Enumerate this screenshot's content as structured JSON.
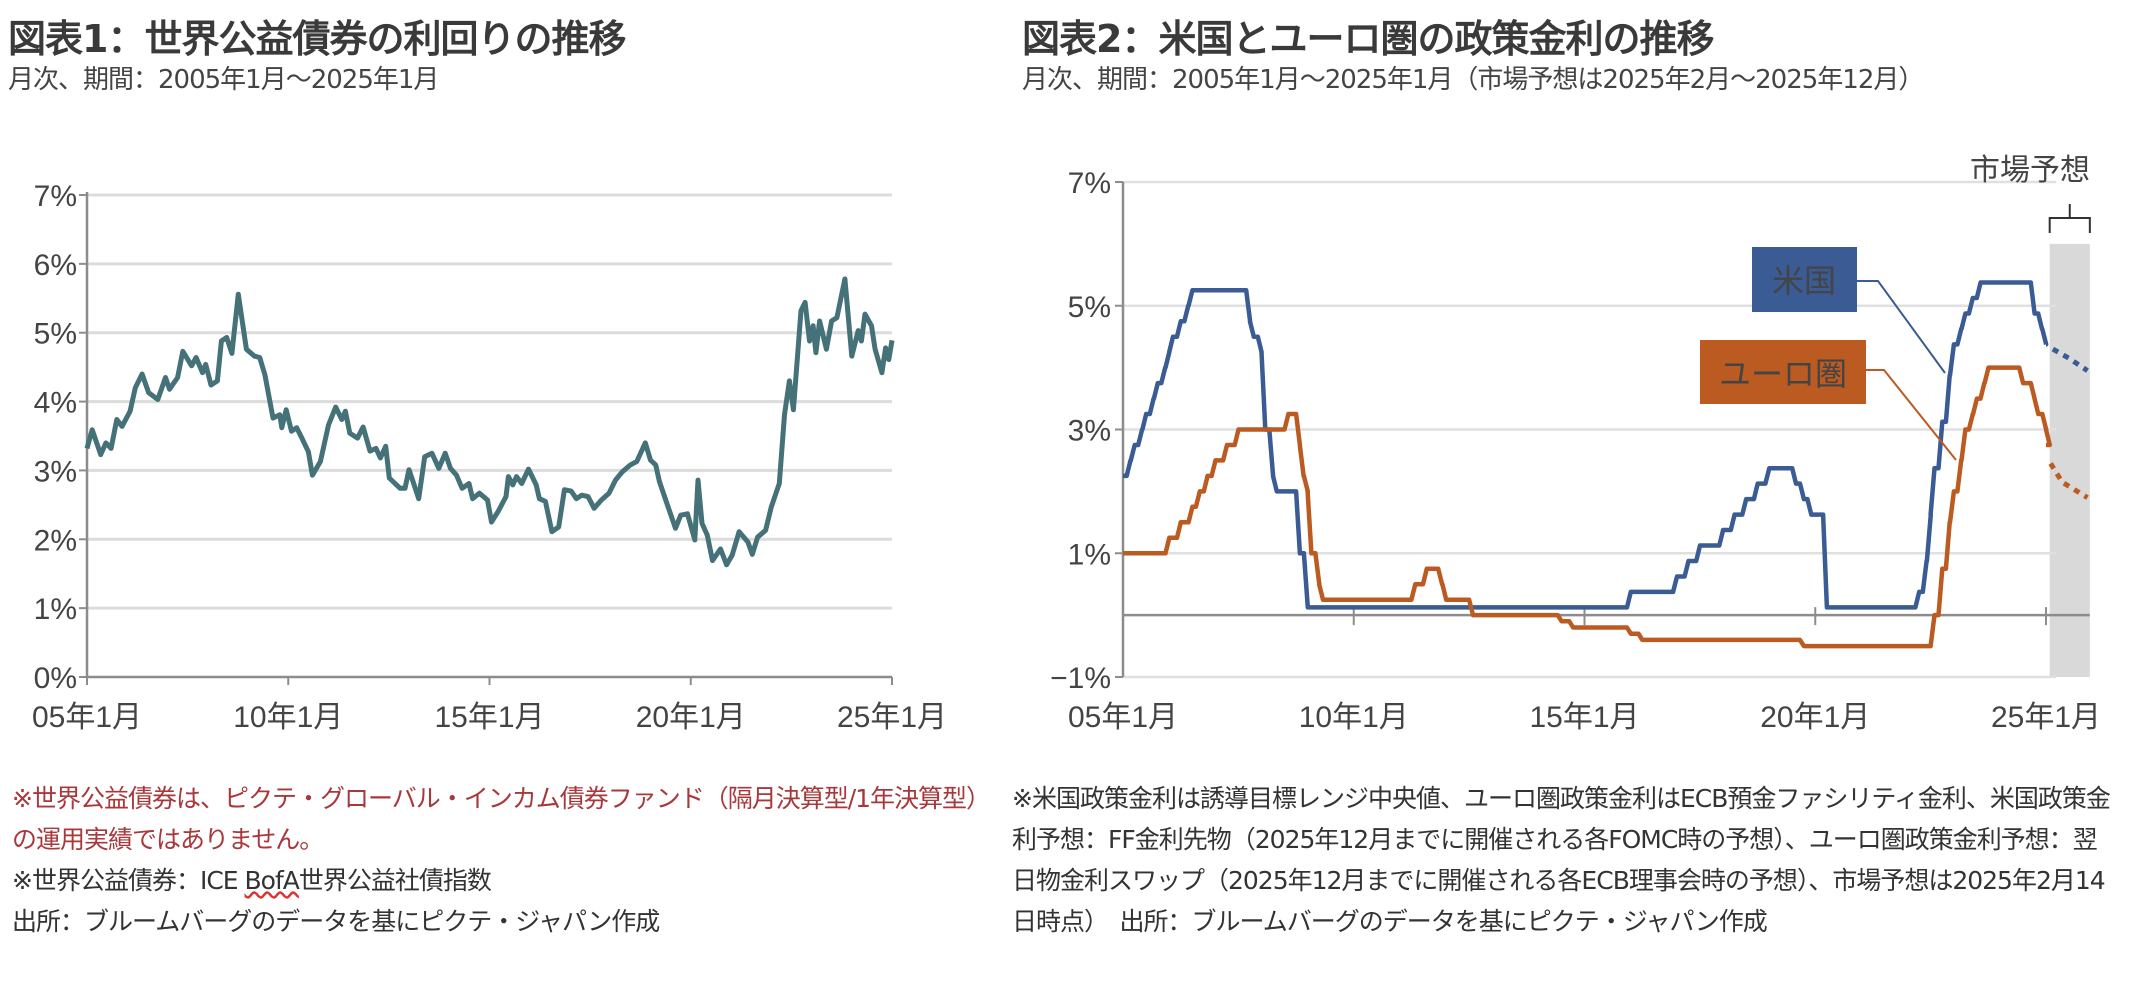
{
  "left": {
    "title": "図表1：世界公益債券の利回りの推移",
    "subtitle": "月次、期間：2005年1月～2025年1月",
    "note_red": "※世界公益債券は、ピクテ・グローバル・インカム債券ファンド（隔月決算型/1年決算型）の運用実績ではありません。",
    "note_index_prefix": "※世界公益債券：ICE ",
    "note_index_bofa": "BofA",
    "note_index_suffix": "世界公益社債指数",
    "source": "出所：ブルームバーグのデータを基にピクテ・ジャパン作成"
  },
  "right": {
    "title": "図表2：米国とユーロ圏の政策金利の推移",
    "subtitle": "月次、期間：2005年1月～2025年1月（市場予想は2025年2月～2025年12月）",
    "notes": "※米国政策金利は誘導目標レンジ中央値、ユーロ圏政策金利はECB預金ファシリティ金利、米国政策金利予想：FF金利先物（2025年12月までに開催される各FOMC時の予想）、ユーロ圏政策金利予想：翌日物金利スワップ（2025年12月までに開催される各ECB理事会時の予想）、市場予想は2025年2月14日時点）　出所：ブルームバーグのデータを基にピクテ・ジャパン作成"
  },
  "chart_data": [
    {
      "type": "line",
      "title": "世界公益債券の利回り",
      "ylim": [
        0,
        7
      ],
      "xlim": [
        2005,
        2025
      ],
      "yticks": [
        {
          "v": 0,
          "label": "0%"
        },
        {
          "v": 1,
          "label": "1%"
        },
        {
          "v": 2,
          "label": "2%"
        },
        {
          "v": 3,
          "label": "3%"
        },
        {
          "v": 4,
          "label": "4%"
        },
        {
          "v": 5,
          "label": "5%"
        },
        {
          "v": 6,
          "label": "6%"
        },
        {
          "v": 7,
          "label": "7%"
        }
      ],
      "xticks": [
        {
          "v": 2005,
          "label": "05年1月"
        },
        {
          "v": 2010,
          "label": "10年1月"
        },
        {
          "v": 2015,
          "label": "15年1月"
        },
        {
          "v": 2020,
          "label": "20年1月"
        },
        {
          "v": 2025,
          "label": "25年1月"
        }
      ],
      "grid": true,
      "color": "#457178",
      "series": [
        {
          "name": "世界公益債券",
          "points": [
            [
              2005.0,
              3.32
            ],
            [
              2005.13,
              3.59
            ],
            [
              2005.34,
              3.23
            ],
            [
              2005.47,
              3.4
            ],
            [
              2005.6,
              3.32
            ],
            [
              2005.74,
              3.74
            ],
            [
              2005.87,
              3.64
            ],
            [
              2006.07,
              3.86
            ],
            [
              2006.2,
              4.2
            ],
            [
              2006.37,
              4.4
            ],
            [
              2006.53,
              4.13
            ],
            [
              2006.76,
              4.03
            ],
            [
              2006.95,
              4.35
            ],
            [
              2007.05,
              4.18
            ],
            [
              2007.25,
              4.35
            ],
            [
              2007.38,
              4.73
            ],
            [
              2007.6,
              4.52
            ],
            [
              2007.71,
              4.64
            ],
            [
              2007.87,
              4.42
            ],
            [
              2007.95,
              4.54
            ],
            [
              2008.08,
              4.24
            ],
            [
              2008.24,
              4.3
            ],
            [
              2008.34,
              4.88
            ],
            [
              2008.47,
              4.93
            ],
            [
              2008.6,
              4.7
            ],
            [
              2008.76,
              5.56
            ],
            [
              2008.96,
              4.76
            ],
            [
              2009.16,
              4.66
            ],
            [
              2009.29,
              4.64
            ],
            [
              2009.42,
              4.39
            ],
            [
              2009.62,
              3.76
            ],
            [
              2009.79,
              3.81
            ],
            [
              2009.84,
              3.62
            ],
            [
              2009.95,
              3.88
            ],
            [
              2010.08,
              3.57
            ],
            [
              2010.21,
              3.62
            ],
            [
              2010.34,
              3.47
            ],
            [
              2010.5,
              3.27
            ],
            [
              2010.6,
              2.93
            ],
            [
              2010.8,
              3.13
            ],
            [
              2011.0,
              3.66
            ],
            [
              2011.18,
              3.92
            ],
            [
              2011.33,
              3.74
            ],
            [
              2011.42,
              3.86
            ],
            [
              2011.53,
              3.54
            ],
            [
              2011.72,
              3.47
            ],
            [
              2011.86,
              3.63
            ],
            [
              2012.03,
              3.28
            ],
            [
              2012.18,
              3.32
            ],
            [
              2012.29,
              3.18
            ],
            [
              2012.42,
              3.35
            ],
            [
              2012.51,
              2.89
            ],
            [
              2012.78,
              2.74
            ],
            [
              2012.9,
              2.74
            ],
            [
              2013.0,
              3.01
            ],
            [
              2013.1,
              2.84
            ],
            [
              2013.24,
              2.59
            ],
            [
              2013.39,
              3.2
            ],
            [
              2013.57,
              3.25
            ],
            [
              2013.74,
              3.03
            ],
            [
              2013.9,
              3.25
            ],
            [
              2014.03,
              3.03
            ],
            [
              2014.18,
              2.93
            ],
            [
              2014.32,
              2.74
            ],
            [
              2014.49,
              2.81
            ],
            [
              2014.58,
              2.59
            ],
            [
              2014.75,
              2.67
            ],
            [
              2014.95,
              2.57
            ],
            [
              2015.05,
              2.25
            ],
            [
              2015.21,
              2.4
            ],
            [
              2015.41,
              2.62
            ],
            [
              2015.47,
              2.91
            ],
            [
              2015.58,
              2.79
            ],
            [
              2015.67,
              2.91
            ],
            [
              2015.8,
              2.81
            ],
            [
              2015.97,
              3.02
            ],
            [
              2016.16,
              2.79
            ],
            [
              2016.24,
              2.59
            ],
            [
              2016.39,
              2.55
            ],
            [
              2016.55,
              2.11
            ],
            [
              2016.72,
              2.18
            ],
            [
              2016.86,
              2.72
            ],
            [
              2017.03,
              2.7
            ],
            [
              2017.16,
              2.59
            ],
            [
              2017.29,
              2.64
            ],
            [
              2017.45,
              2.62
            ],
            [
              2017.6,
              2.45
            ],
            [
              2017.78,
              2.57
            ],
            [
              2017.97,
              2.67
            ],
            [
              2018.13,
              2.86
            ],
            [
              2018.3,
              2.98
            ],
            [
              2018.5,
              3.08
            ],
            [
              2018.66,
              3.13
            ],
            [
              2018.87,
              3.4
            ],
            [
              2019.0,
              3.15
            ],
            [
              2019.13,
              3.08
            ],
            [
              2019.22,
              2.84
            ],
            [
              2019.42,
              2.5
            ],
            [
              2019.62,
              2.16
            ],
            [
              2019.75,
              2.35
            ],
            [
              2019.92,
              2.37
            ],
            [
              2020.1,
              1.99
            ],
            [
              2020.18,
              2.86
            ],
            [
              2020.28,
              2.23
            ],
            [
              2020.41,
              2.06
            ],
            [
              2020.54,
              1.69
            ],
            [
              2020.74,
              1.86
            ],
            [
              2020.89,
              1.63
            ],
            [
              2021.03,
              1.77
            ],
            [
              2021.2,
              2.11
            ],
            [
              2021.42,
              1.96
            ],
            [
              2021.53,
              1.78
            ],
            [
              2021.66,
              2.03
            ],
            [
              2021.86,
              2.13
            ],
            [
              2022.0,
              2.47
            ],
            [
              2022.2,
              2.81
            ],
            [
              2022.33,
              3.81
            ],
            [
              2022.45,
              4.3
            ],
            [
              2022.55,
              3.88
            ],
            [
              2022.74,
              5.32
            ],
            [
              2022.84,
              5.44
            ],
            [
              2022.95,
              4.88
            ],
            [
              2023.04,
              5.1
            ],
            [
              2023.11,
              4.71
            ],
            [
              2023.2,
              5.17
            ],
            [
              2023.37,
              4.76
            ],
            [
              2023.5,
              5.17
            ],
            [
              2023.63,
              5.22
            ],
            [
              2023.83,
              5.78
            ],
            [
              2024.0,
              4.66
            ],
            [
              2024.16,
              5.03
            ],
            [
              2024.24,
              4.88
            ],
            [
              2024.33,
              5.27
            ],
            [
              2024.49,
              5.1
            ],
            [
              2024.58,
              4.76
            ],
            [
              2024.75,
              4.42
            ],
            [
              2024.84,
              4.78
            ],
            [
              2024.92,
              4.61
            ],
            [
              2025.0,
              4.89
            ]
          ]
        }
      ]
    },
    {
      "type": "line",
      "title": "米国とユーロ圏の政策金利",
      "ylim": [
        -1,
        7
      ],
      "xlim": [
        2005,
        2025
      ],
      "yticks": [
        {
          "v": -1,
          "label": "−1%"
        },
        {
          "v": 1,
          "label": "1%"
        },
        {
          "v": 3,
          "label": "3%"
        },
        {
          "v": 5,
          "label": "5%"
        },
        {
          "v": 7,
          "label": "7%"
        }
      ],
      "xticks": [
        {
          "v": 2005,
          "label": "05年1月"
        },
        {
          "v": 2010,
          "label": "10年1月"
        },
        {
          "v": 2015,
          "label": "15年1月"
        },
        {
          "v": 2020,
          "label": "20年1月"
        },
        {
          "v": 2025,
          "label": "25年1月"
        }
      ],
      "grid": true,
      "forecast_period": {
        "label": "市場予想",
        "start": 2025.08,
        "end": 2025.95
      },
      "series": [
        {
          "name": "米国",
          "color": "#3a5b94",
          "steps": [
            [
              2005.0,
              2.25
            ],
            [
              2005.08,
              2.5
            ],
            [
              2005.17,
              2.75
            ],
            [
              2005.33,
              3.0
            ],
            [
              2005.42,
              3.25
            ],
            [
              2005.58,
              3.5
            ],
            [
              2005.67,
              3.75
            ],
            [
              2005.83,
              4.0
            ],
            [
              2005.92,
              4.25
            ],
            [
              2006.0,
              4.5
            ],
            [
              2006.17,
              4.75
            ],
            [
              2006.33,
              5.0
            ],
            [
              2006.42,
              5.25
            ],
            [
              2007.67,
              4.75
            ],
            [
              2007.75,
              4.5
            ],
            [
              2007.92,
              4.25
            ],
            [
              2008.0,
              3.0
            ],
            [
              2008.17,
              2.25
            ],
            [
              2008.25,
              2.0
            ],
            [
              2008.75,
              1.0
            ],
            [
              2008.92,
              0.125
            ],
            [
              2015.92,
              0.375
            ],
            [
              2016.92,
              0.625
            ],
            [
              2017.17,
              0.875
            ],
            [
              2017.42,
              1.125
            ],
            [
              2017.92,
              1.375
            ],
            [
              2018.17,
              1.625
            ],
            [
              2018.42,
              1.875
            ],
            [
              2018.67,
              2.125
            ],
            [
              2018.92,
              2.375
            ],
            [
              2019.5,
              2.125
            ],
            [
              2019.67,
              1.875
            ],
            [
              2019.83,
              1.625
            ],
            [
              2020.17,
              0.125
            ],
            [
              2022.17,
              0.375
            ],
            [
              2022.33,
              0.875
            ],
            [
              2022.42,
              1.625
            ],
            [
              2022.5,
              2.375
            ],
            [
              2022.67,
              3.125
            ],
            [
              2022.83,
              3.875
            ],
            [
              2022.92,
              4.375
            ],
            [
              2023.08,
              4.625
            ],
            [
              2023.17,
              4.875
            ],
            [
              2023.33,
              5.125
            ],
            [
              2023.5,
              5.375
            ],
            [
              2024.67,
              4.875
            ],
            [
              2024.83,
              4.625
            ],
            [
              2024.92,
              4.375
            ]
          ],
          "forecast": [
            [
              2025.15,
              4.3
            ],
            [
              2025.5,
              4.15
            ],
            [
              2025.9,
              3.95
            ]
          ]
        },
        {
          "name": "ユーロ圏",
          "color": "#bb5b22",
          "steps": [
            [
              2005.0,
              1.0
            ],
            [
              2005.92,
              1.25
            ],
            [
              2006.17,
              1.5
            ],
            [
              2006.42,
              1.75
            ],
            [
              2006.58,
              2.0
            ],
            [
              2006.75,
              2.25
            ],
            [
              2006.92,
              2.5
            ],
            [
              2007.17,
              2.75
            ],
            [
              2007.42,
              3.0
            ],
            [
              2008.5,
              3.25
            ],
            [
              2008.75,
              2.75
            ],
            [
              2008.83,
              2.25
            ],
            [
              2008.92,
              2.0
            ],
            [
              2009.0,
              1.0
            ],
            [
              2009.17,
              0.5
            ],
            [
              2009.25,
              0.25
            ],
            [
              2011.25,
              0.5
            ],
            [
              2011.5,
              0.75
            ],
            [
              2011.83,
              0.5
            ],
            [
              2011.92,
              0.25
            ],
            [
              2012.5,
              0.0
            ],
            [
              2014.42,
              -0.1
            ],
            [
              2014.67,
              -0.2
            ],
            [
              2015.92,
              -0.3
            ],
            [
              2016.17,
              -0.4
            ],
            [
              2019.67,
              -0.5
            ],
            [
              2022.5,
              0.0
            ],
            [
              2022.67,
              0.75
            ],
            [
              2022.83,
              1.5
            ],
            [
              2022.92,
              2.0
            ],
            [
              2023.08,
              2.5
            ],
            [
              2023.17,
              3.0
            ],
            [
              2023.33,
              3.25
            ],
            [
              2023.42,
              3.5
            ],
            [
              2023.58,
              3.75
            ],
            [
              2023.67,
              4.0
            ],
            [
              2024.42,
              3.75
            ],
            [
              2024.67,
              3.5
            ],
            [
              2024.75,
              3.25
            ],
            [
              2024.92,
              3.0
            ],
            [
              2025.0,
              2.75
            ]
          ],
          "forecast": [
            [
              2025.1,
              2.45
            ],
            [
              2025.35,
              2.15
            ],
            [
              2025.9,
              1.9
            ]
          ]
        }
      ]
    }
  ]
}
